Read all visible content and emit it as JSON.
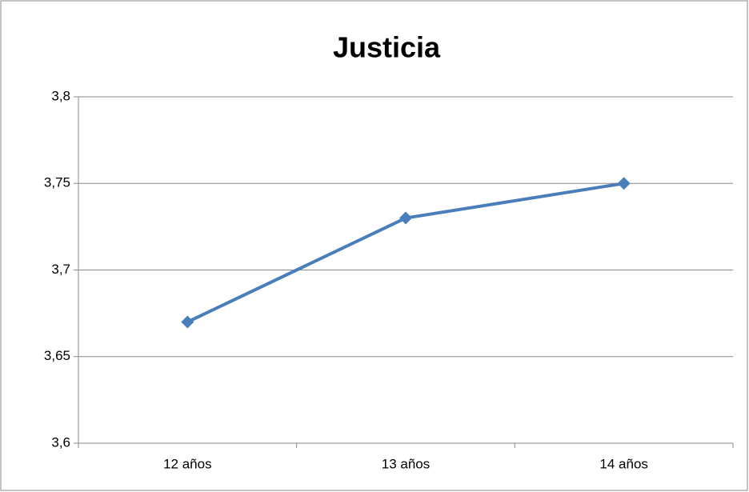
{
  "chart_data": {
    "type": "line",
    "title": "Justicia",
    "categories": [
      "12 años",
      "13 años",
      "14 años"
    ],
    "series": [
      {
        "name": "Justicia",
        "color": "#4a7ebb",
        "values": [
          3.67,
          3.73,
          3.75
        ]
      }
    ],
    "ylim": [
      3.6,
      3.8
    ],
    "yticks": [
      {
        "value": 3.6,
        "label": "3,6"
      },
      {
        "value": 3.65,
        "label": "3,65"
      },
      {
        "value": 3.7,
        "label": "3,7"
      },
      {
        "value": 3.75,
        "label": "3,75"
      },
      {
        "value": 3.8,
        "label": "3,8"
      }
    ],
    "grid": true
  }
}
